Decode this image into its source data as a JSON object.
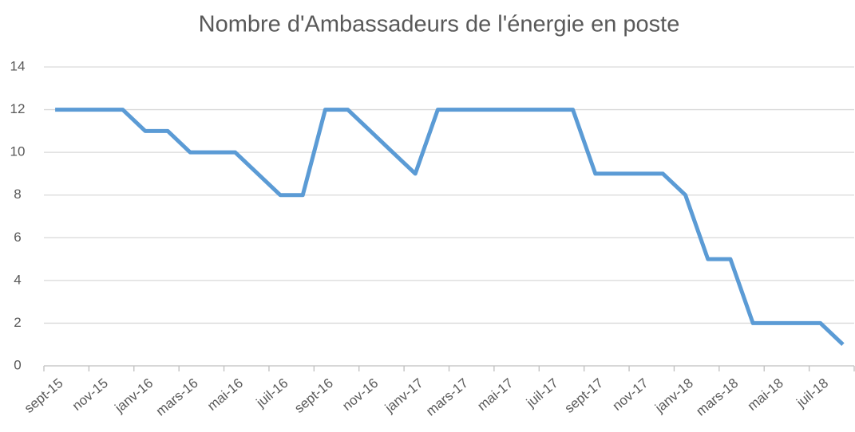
{
  "chart_data": {
    "type": "line",
    "title": "Nombre d'Ambassadeurs de l'énergie en poste",
    "categories": [
      "sept-15",
      null,
      "nov-15",
      null,
      "janv-16",
      null,
      "mars-16",
      null,
      "mai-16",
      null,
      "juil-16",
      null,
      "sept-16",
      null,
      "nov-16",
      null,
      "janv-17",
      null,
      "mars-17",
      null,
      "mai-17",
      null,
      "juil-17",
      null,
      "sept-17",
      null,
      "nov-17",
      null,
      "janv-18",
      null,
      "mars-18",
      null,
      "mai-18",
      null,
      "juil-18",
      null
    ],
    "series": [
      {
        "name": "Ambassadeurs",
        "color": "#5b9bd5",
        "values": [
          12,
          12,
          12,
          12,
          11,
          11,
          10,
          10,
          10,
          9,
          8,
          8,
          12,
          12,
          11,
          10,
          9,
          12,
          12,
          12,
          12,
          12,
          12,
          12,
          9,
          9,
          9,
          9,
          8,
          5,
          5,
          2,
          2,
          2,
          2,
          1
        ]
      }
    ],
    "ylim": [
      0,
      14
    ],
    "yticks": [
      0,
      2,
      4,
      6,
      8,
      10,
      12,
      14
    ],
    "grid": true
  }
}
